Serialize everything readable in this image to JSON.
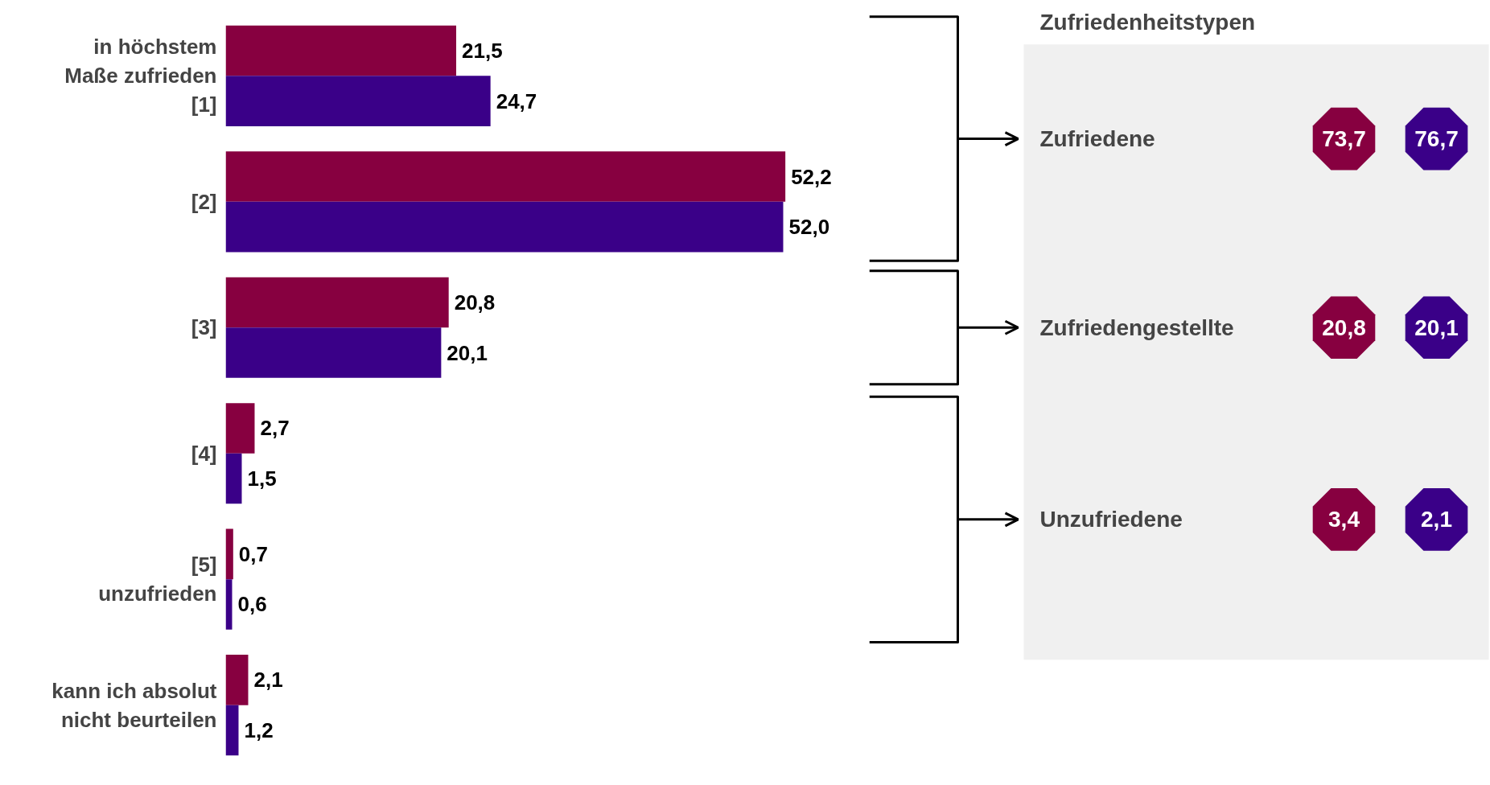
{
  "chart_data": [
    {
      "type": "bar",
      "orientation": "horizontal",
      "categories": [
        "in höchstem\nMaße zufrieden\n[1]",
        "[2]",
        "[3]",
        "[4]",
        "[5]\nunzufrieden",
        "kann ich absolut\nnicht beurteilen"
      ],
      "series": [
        {
          "color": "#870040",
          "values": [
            21.5,
            52.2,
            20.8,
            2.7,
            0.7,
            2.1
          ],
          "value_labels": [
            "21,5",
            "52,2",
            "20,8",
            "2,7",
            "0,7",
            "2,1"
          ]
        },
        {
          "color": "#3a0088",
          "values": [
            24.7,
            52.0,
            20.1,
            1.5,
            0.6,
            1.2
          ],
          "value_labels": [
            "24,7",
            "52,0",
            "20,1",
            "1,5",
            "0,6",
            "1,2"
          ]
        }
      ]
    },
    {
      "type": "other",
      "title": "Zufriedenheitstypen",
      "categories": [
        "Zufriedene",
        "Zufriedengestellte",
        "Unzufriedene"
      ],
      "series": [
        {
          "color": "#870040",
          "values": [
            73.7,
            20.8,
            3.4
          ],
          "value_labels": [
            "73,7",
            "20,8",
            "3,4"
          ]
        },
        {
          "color": "#3a0088",
          "values": [
            76.7,
            20.1,
            2.1
          ],
          "value_labels": [
            "76,7",
            "20,1",
            "2,1"
          ]
        }
      ]
    }
  ]
}
